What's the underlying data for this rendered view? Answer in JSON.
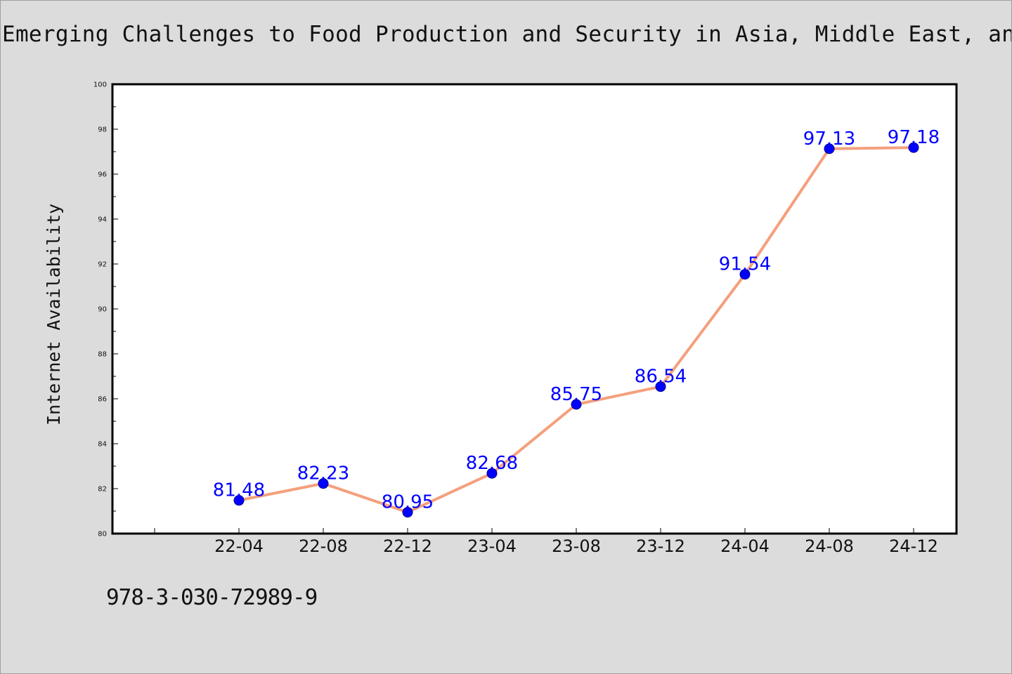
{
  "chart_data": {
    "type": "line",
    "title": "Emerging Challenges to Food Production and Security in Asia, Middle East, and Africa",
    "xlabel": "",
    "ylabel": "Internet Availability",
    "categories": [
      "22-04",
      "22-08",
      "22-12",
      "23-04",
      "23-08",
      "23-12",
      "24-04",
      "24-08",
      "24-12"
    ],
    "series": [
      {
        "values": [
          81.48,
          82.23,
          80.95,
          82.68,
          85.75,
          86.54,
          91.54,
          97.13,
          97.18
        ]
      }
    ],
    "data_labels": [
      "81.48",
      "82.23",
      "80.95",
      "82.68",
      "85.75",
      "86.54",
      "91.54",
      "97.13",
      "97.18"
    ],
    "ylim": [
      80,
      100
    ],
    "y_ticks": [
      "80",
      "82",
      "84",
      "86",
      "88",
      "90",
      "92",
      "94",
      "96",
      "98",
      "100"
    ],
    "grid": false,
    "colors": {
      "line": "#f4a07c",
      "marker": "#0000ff",
      "data_label": "#0000ff",
      "plot_background": "#ffffff",
      "figure_background": "#dcdcdc"
    }
  },
  "footer": {
    "isbn": "978-3-030-72989-9"
  }
}
